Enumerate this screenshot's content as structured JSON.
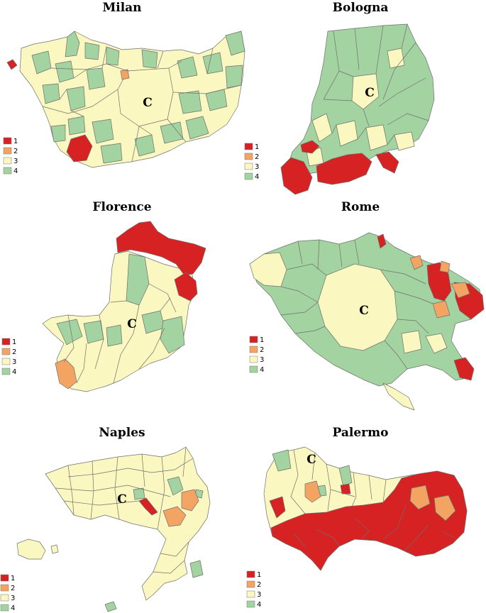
{
  "legend_classes": [
    {
      "label": "1",
      "color": "#d62222"
    },
    {
      "label": "2",
      "color": "#f4a462"
    },
    {
      "label": "3",
      "color": "#fbf7c0"
    },
    {
      "label": "4",
      "color": "#a3d3a0"
    }
  ],
  "maps": [
    {
      "id": "milan",
      "title": "Milan",
      "core_label": "C"
    },
    {
      "id": "bologna",
      "title": "Bologna",
      "core_label": "C"
    },
    {
      "id": "florence",
      "title": "Florence",
      "core_label": "C"
    },
    {
      "id": "rome",
      "title": "Rome",
      "core_label": "C"
    },
    {
      "id": "naples",
      "title": "Naples",
      "core_label": "C"
    },
    {
      "id": "palermo",
      "title": "Palermo",
      "core_label": "C"
    }
  ]
}
